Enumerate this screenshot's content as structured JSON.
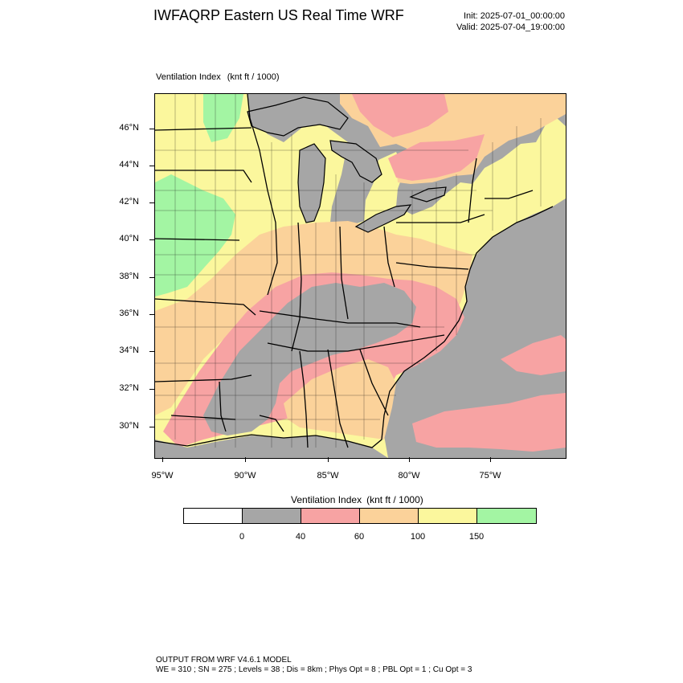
{
  "header": {
    "title": "IWFAQRP Eastern US Real Time WRF",
    "init": "Init: 2025-07-01_00:00:00",
    "valid": "Valid: 2025-07-04_19:00:00"
  },
  "map": {
    "field_name": "Ventilation Index",
    "units": "(knt ft / 1000)",
    "lat_labels": [
      "46°N",
      "44°N",
      "42°N",
      "40°N",
      "38°N",
      "36°N",
      "34°N",
      "32°N",
      "30°N"
    ],
    "lon_labels": [
      "95°W",
      "90°W",
      "85°W",
      "80°W",
      "75°W"
    ]
  },
  "colorbar": {
    "title": "Ventilation Index",
    "units": "(knt ft / 1000)",
    "colors": [
      "#ffffff",
      "#a6a6a6",
      "#f7a3a3",
      "#fbd29a",
      "#fbf79d",
      "#a3f5a3"
    ],
    "ticks": [
      "0",
      "40",
      "60",
      "100",
      "150"
    ]
  },
  "footer": {
    "line1": "OUTPUT FROM WRF V4.6.1 MODEL",
    "line2": "WE = 310 ; SN = 275 ; Levels = 38 ; Dis = 8km ; Phys Opt = 8 ; PBL Opt = 1 ; Cu Opt = 3"
  }
}
